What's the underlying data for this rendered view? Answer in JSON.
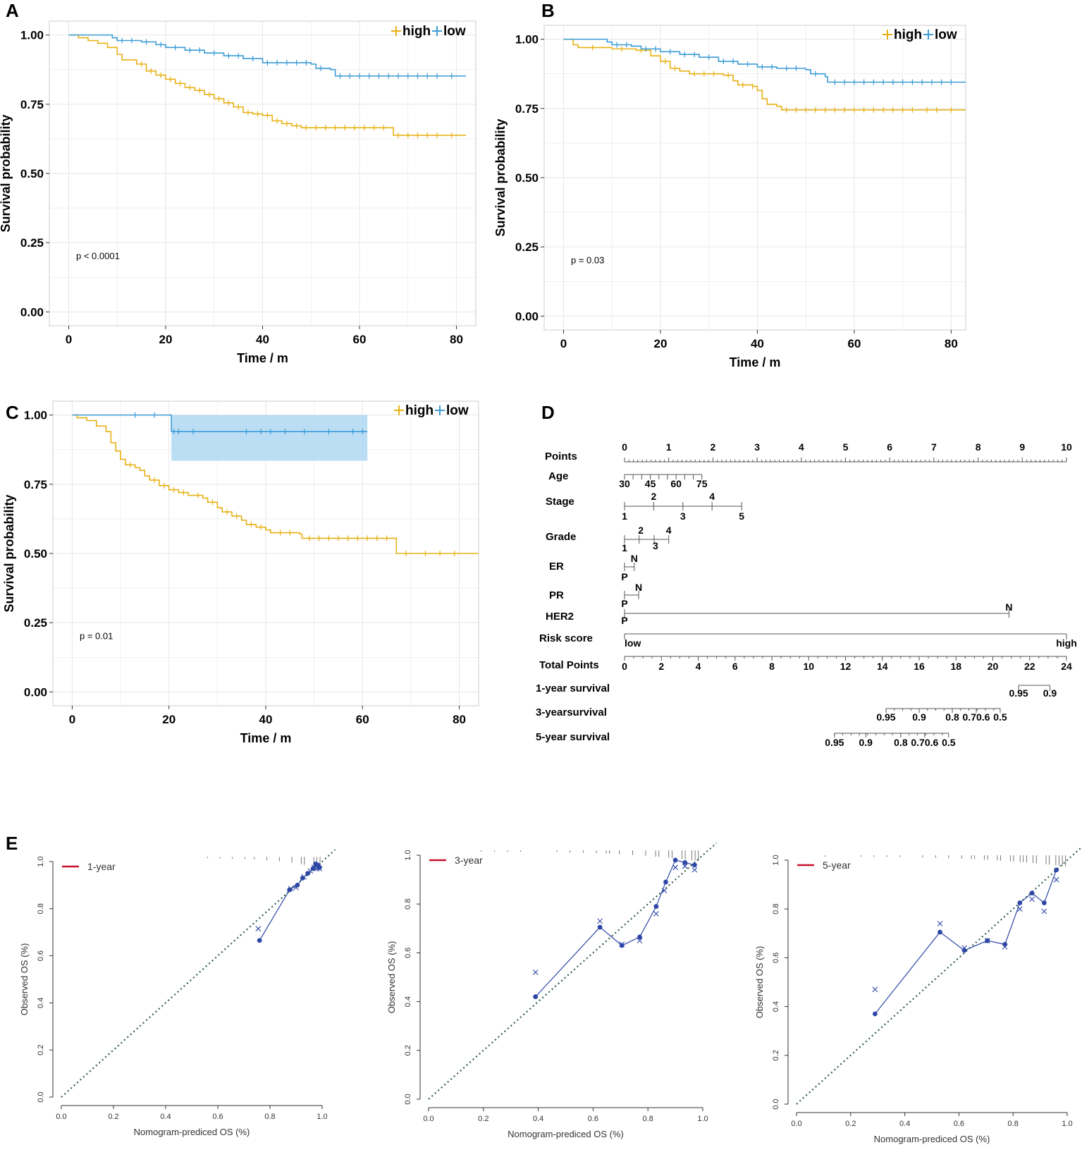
{
  "colors": {
    "high": "#E7B115",
    "low": "#3A9BD5",
    "grid": "#e6e6e6",
    "panel_border": "#cccccc",
    "ci_fill": "#aad6f3",
    "calib_point": "#2E47A6",
    "calib_ideal": "#2F5F4A",
    "legend_red": "#C8102E"
  },
  "panel_labels": [
    "A",
    "B",
    "C",
    "D",
    "E"
  ],
  "chart_data": [
    {
      "id": "A",
      "type": "line",
      "subtype": "kaplan-meier",
      "xlabel": "Time / m",
      "ylabel": "Survival  probability",
      "xlim": [
        -4,
        84
      ],
      "ylim": [
        -0.05,
        1.05
      ],
      "x_ticks": [
        0,
        20,
        40,
        60,
        80
      ],
      "y_ticks": [
        "0.00",
        "0.25",
        "0.50",
        "0.75",
        "1.00"
      ],
      "legend": [
        {
          "name": "high",
          "color": "#E7B115"
        },
        {
          "name": "low",
          "color": "#3A9BD5"
        }
      ],
      "annotation": "p < 0.0001",
      "series": [
        {
          "name": "high",
          "color": "#E7B115",
          "points": [
            [
              0,
              1
            ],
            [
              2,
              0.99
            ],
            [
              4,
              0.98
            ],
            [
              6,
              0.97
            ],
            [
              8,
              0.955
            ],
            [
              10,
              0.93
            ],
            [
              11,
              0.91
            ],
            [
              14,
              0.895
            ],
            [
              16,
              0.87
            ],
            [
              18,
              0.855
            ],
            [
              20,
              0.84
            ],
            [
              22,
              0.825
            ],
            [
              24,
              0.81
            ],
            [
              26,
              0.8
            ],
            [
              28,
              0.785
            ],
            [
              30,
              0.77
            ],
            [
              32,
              0.755
            ],
            [
              34,
              0.74
            ],
            [
              36,
              0.72
            ],
            [
              38,
              0.715
            ],
            [
              40,
              0.71
            ],
            [
              42,
              0.69
            ],
            [
              44,
              0.68
            ],
            [
              46,
              0.672
            ],
            [
              48,
              0.665
            ],
            [
              67,
              0.665
            ],
            [
              67,
              0.638
            ],
            [
              82,
              0.638
            ]
          ],
          "censor": [
            15,
            17,
            19,
            21,
            23,
            25,
            27,
            29,
            31,
            33,
            35,
            37,
            39,
            41,
            43,
            45,
            47,
            49,
            51,
            53,
            55,
            57,
            59,
            61,
            63,
            65,
            68,
            70,
            72,
            74,
            76,
            79
          ]
        },
        {
          "name": "low",
          "color": "#3A9BD5",
          "points": [
            [
              0,
              1
            ],
            [
              9,
              0.99
            ],
            [
              10,
              0.98
            ],
            [
              15,
              0.975
            ],
            [
              18,
              0.965
            ],
            [
              20,
              0.955
            ],
            [
              24,
              0.945
            ],
            [
              28,
              0.935
            ],
            [
              32,
              0.925
            ],
            [
              36,
              0.915
            ],
            [
              40,
              0.9
            ],
            [
              50,
              0.895
            ],
            [
              51,
              0.88
            ],
            [
              54,
              0.875
            ],
            [
              55,
              0.852
            ],
            [
              82,
              0.852
            ]
          ],
          "censor": [
            11,
            13,
            16,
            19,
            22,
            25,
            27,
            30,
            33,
            35,
            38,
            41,
            43,
            45,
            47,
            49,
            52,
            56,
            58,
            60,
            62,
            64,
            66,
            68,
            70,
            72,
            74,
            76,
            79
          ]
        }
      ]
    },
    {
      "id": "B",
      "type": "line",
      "subtype": "kaplan-meier",
      "xlabel": "Time / m",
      "ylabel": "Survival  probability",
      "xlim": [
        -4,
        83
      ],
      "ylim": [
        -0.05,
        1.05
      ],
      "x_ticks": [
        0,
        20,
        40,
        60,
        80
      ],
      "y_ticks": [
        "0.00",
        "0.25",
        "0.50",
        "0.75",
        "1.00"
      ],
      "legend": [
        {
          "name": "high",
          "color": "#E7B115"
        },
        {
          "name": "low",
          "color": "#3A9BD5"
        }
      ],
      "annotation": "p = 0.03",
      "series": [
        {
          "name": "high",
          "color": "#E7B115",
          "points": [
            [
              0,
              1
            ],
            [
              2,
              0.98
            ],
            [
              3,
              0.97
            ],
            [
              10,
              0.965
            ],
            [
              15,
              0.96
            ],
            [
              18,
              0.94
            ],
            [
              20,
              0.92
            ],
            [
              22,
              0.895
            ],
            [
              24,
              0.885
            ],
            [
              26,
              0.875
            ],
            [
              33,
              0.87
            ],
            [
              35,
              0.85
            ],
            [
              36,
              0.835
            ],
            [
              39,
              0.83
            ],
            [
              40,
              0.815
            ],
            [
              41,
              0.785
            ],
            [
              42,
              0.765
            ],
            [
              44,
              0.758
            ],
            [
              45,
              0.745
            ],
            [
              83,
              0.745
            ]
          ],
          "censor": [
            6,
            12,
            16,
            21,
            23,
            27,
            29,
            31,
            34,
            37,
            39,
            46,
            48,
            50,
            52,
            54,
            56,
            58,
            60,
            62,
            64,
            66,
            68,
            70,
            72,
            75,
            77,
            80
          ]
        },
        {
          "name": "low",
          "color": "#3A9BD5",
          "points": [
            [
              0,
              1
            ],
            [
              9,
              0.99
            ],
            [
              10,
              0.98
            ],
            [
              14,
              0.975
            ],
            [
              16,
              0.965
            ],
            [
              20,
              0.955
            ],
            [
              24,
              0.945
            ],
            [
              28,
              0.935
            ],
            [
              32,
              0.92
            ],
            [
              36,
              0.91
            ],
            [
              40,
              0.9
            ],
            [
              44,
              0.895
            ],
            [
              50,
              0.89
            ],
            [
              51,
              0.875
            ],
            [
              54,
              0.865
            ],
            [
              54.5,
              0.845
            ],
            [
              83,
              0.845
            ]
          ],
          "censor": [
            11,
            13,
            17,
            19,
            22,
            25,
            27,
            30,
            33,
            35,
            38,
            41,
            43,
            46,
            48,
            52,
            56,
            58,
            60,
            62,
            64,
            66,
            68,
            70,
            72,
            74,
            76,
            78,
            80
          ]
        }
      ]
    },
    {
      "id": "C",
      "type": "line",
      "subtype": "kaplan-meier",
      "xlabel": "Time / m",
      "ylabel": "Survival  probability",
      "xlim": [
        -4,
        84
      ],
      "ylim": [
        -0.05,
        1.05
      ],
      "x_ticks": [
        0,
        20,
        40,
        60,
        80
      ],
      "y_ticks": [
        "0.00",
        "0.25",
        "0.50",
        "0.75",
        "1.00"
      ],
      "legend": [
        {
          "name": "high",
          "color": "#E7B115"
        },
        {
          "name": "low",
          "color": "#3A9BD5"
        }
      ],
      "annotation": "p = 0.01",
      "ci_band": {
        "series": "low",
        "x0": 20.5,
        "x1": 61,
        "y0": 0.835,
        "y1": 1.0
      },
      "series": [
        {
          "name": "high",
          "color": "#E7B115",
          "points": [
            [
              0,
              1
            ],
            [
              1,
              0.99
            ],
            [
              3,
              0.98
            ],
            [
              5,
              0.96
            ],
            [
              7,
              0.94
            ],
            [
              8,
              0.9
            ],
            [
              9,
              0.87
            ],
            [
              10,
              0.84
            ],
            [
              11,
              0.82
            ],
            [
              13,
              0.81
            ],
            [
              14,
              0.8
            ],
            [
              15,
              0.78
            ],
            [
              16,
              0.765
            ],
            [
              18,
              0.745
            ],
            [
              20,
              0.73
            ],
            [
              22,
              0.72
            ],
            [
              24,
              0.71
            ],
            [
              27,
              0.7
            ],
            [
              28,
              0.685
            ],
            [
              30,
              0.665
            ],
            [
              31,
              0.65
            ],
            [
              33,
              0.635
            ],
            [
              35,
              0.62
            ],
            [
              36,
              0.605
            ],
            [
              38,
              0.595
            ],
            [
              40,
              0.585
            ],
            [
              41,
              0.575
            ],
            [
              47,
              0.57
            ],
            [
              47.5,
              0.555
            ],
            [
              67,
              0.555
            ],
            [
              67,
              0.5
            ],
            [
              84,
              0.5
            ]
          ],
          "censor": [
            12,
            17,
            19,
            21,
            23,
            26,
            29,
            32,
            34,
            37,
            39,
            43,
            45,
            49,
            51,
            53,
            55,
            57,
            59,
            61,
            63,
            65,
            69,
            73,
            76,
            79
          ]
        },
        {
          "name": "low",
          "color": "#3A9BD5",
          "points": [
            [
              0,
              1
            ],
            [
              20.5,
              1
            ],
            [
              20.5,
              0.94
            ],
            [
              61,
              0.94
            ]
          ],
          "censor": [
            13,
            17,
            21,
            22,
            25,
            36,
            39,
            41,
            44,
            48,
            53,
            58,
            60
          ]
        }
      ]
    }
  ],
  "nomogram": {
    "rows": [
      {
        "label": "Points",
        "scale": [
          "0",
          "1",
          "2",
          "3",
          "4",
          "5",
          "6",
          "7",
          "8",
          "9",
          "10"
        ]
      },
      {
        "label": "Age",
        "values": [
          "30",
          "45",
          "60",
          "75"
        ]
      },
      {
        "label": "Stage",
        "top": [
          "2",
          "4"
        ],
        "bottom": [
          "1",
          "3",
          "5"
        ]
      },
      {
        "label": "Grade",
        "top": [
          "2",
          "4"
        ],
        "bottom": [
          "1",
          "3"
        ]
      },
      {
        "label": "ER",
        "top": "N",
        "bottom": "P"
      },
      {
        "label": "PR",
        "top": "N",
        "bottom": "P"
      },
      {
        "label": "HER2",
        "top": "N",
        "bottom": "P"
      },
      {
        "label": "Risk score",
        "left": "low",
        "right": "high"
      },
      {
        "label": "Total Points",
        "scale": [
          "0",
          "2",
          "4",
          "6",
          "8",
          "10",
          "12",
          "14",
          "16",
          "18",
          "20",
          "22",
          "24"
        ]
      },
      {
        "label": "1-year survival",
        "values": [
          "0.95",
          "0.9"
        ]
      },
      {
        "label": "3-yearsurvival",
        "values": [
          "0.95",
          "0.9",
          "0.8",
          "0.70.6",
          "0.5"
        ]
      },
      {
        "label": "5-year survival",
        "values": [
          "0.95",
          "0.9",
          "0.8",
          "0.70.6",
          "0.5"
        ]
      }
    ]
  },
  "calibration": [
    {
      "id": "E1",
      "type": "scatter",
      "legend": "1-year",
      "xlabel": "Nomogram-prediced OS (%)",
      "ylabel": "Observed OS (%)",
      "ticks": [
        "0.0",
        "0.2",
        "0.4",
        "0.6",
        "0.8",
        "1.0"
      ],
      "observed": [
        [
          0.76,
          0.665
        ],
        [
          0.875,
          0.88
        ],
        [
          0.905,
          0.9
        ],
        [
          0.925,
          0.93
        ],
        [
          0.945,
          0.95
        ],
        [
          0.965,
          0.97
        ],
        [
          0.975,
          0.99
        ],
        [
          0.985,
          0.985
        ],
        [
          0.99,
          0.975
        ]
      ],
      "corrected": [
        [
          0.755,
          0.715
        ],
        [
          0.88,
          0.885
        ],
        [
          0.9,
          0.89
        ],
        [
          0.93,
          0.935
        ],
        [
          0.955,
          0.96
        ],
        [
          0.97,
          0.975
        ],
        [
          0.98,
          0.97
        ],
        [
          0.99,
          0.97
        ]
      ]
    },
    {
      "id": "E2",
      "type": "scatter",
      "legend": "3-year",
      "xlabel": "Nomogram-prediced OS (%)",
      "ylabel": "Observed OS (%)",
      "ticks": [
        "0.0",
        "0.2",
        "0.4",
        "0.6",
        "0.8",
        "1.0"
      ],
      "observed": [
        [
          0.39,
          0.42
        ],
        [
          0.625,
          0.705
        ],
        [
          0.705,
          0.63
        ],
        [
          0.77,
          0.665
        ],
        [
          0.83,
          0.79
        ],
        [
          0.865,
          0.89
        ],
        [
          0.9,
          0.98
        ],
        [
          0.935,
          0.97
        ],
        [
          0.97,
          0.96
        ]
      ],
      "corrected": [
        [
          0.39,
          0.52
        ],
        [
          0.625,
          0.73
        ],
        [
          0.705,
          0.635
        ],
        [
          0.77,
          0.65
        ],
        [
          0.83,
          0.76
        ],
        [
          0.86,
          0.855
        ],
        [
          0.9,
          0.95
        ],
        [
          0.935,
          0.955
        ],
        [
          0.97,
          0.94
        ]
      ]
    },
    {
      "id": "E3",
      "type": "scatter",
      "legend": "5-year",
      "xlabel": "Nomogram-prediced OS (%)",
      "ylabel": "Observed OS (%)",
      "ticks": [
        "0.0",
        "0.2",
        "0.4",
        "0.6",
        "0.8",
        "1.0"
      ],
      "observed": [
        [
          0.29,
          0.37
        ],
        [
          0.53,
          0.705
        ],
        [
          0.62,
          0.63
        ],
        [
          0.705,
          0.67
        ],
        [
          0.77,
          0.655
        ],
        [
          0.825,
          0.825
        ],
        [
          0.87,
          0.865
        ],
        [
          0.915,
          0.825
        ],
        [
          0.96,
          0.96
        ]
      ],
      "corrected": [
        [
          0.29,
          0.47
        ],
        [
          0.53,
          0.74
        ],
        [
          0.62,
          0.64
        ],
        [
          0.705,
          0.67
        ],
        [
          0.77,
          0.645
        ],
        [
          0.825,
          0.8
        ],
        [
          0.87,
          0.84
        ],
        [
          0.915,
          0.79
        ],
        [
          0.96,
          0.92
        ]
      ]
    }
  ]
}
